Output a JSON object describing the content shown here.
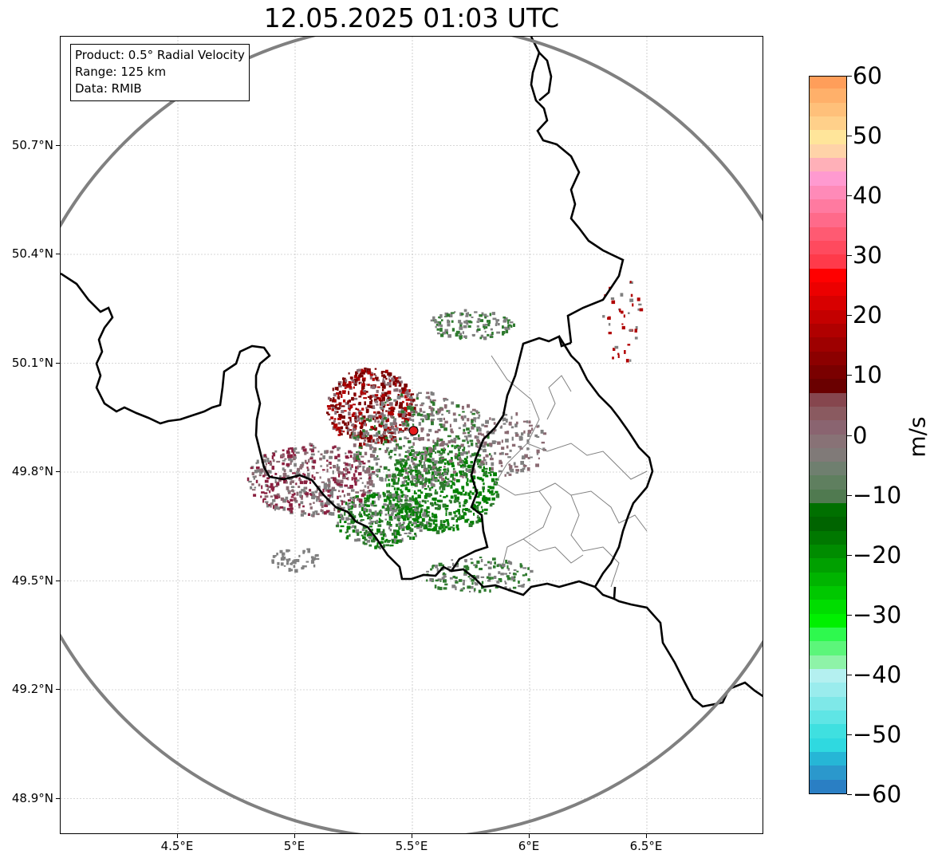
{
  "title": "12.05.2025 01:03 UTC",
  "info_box": {
    "product": "Product: 0.5° Radial Velocity",
    "range": "Range: 125 km",
    "source": "Data: RMIB"
  },
  "map": {
    "lon_range": [
      4.0,
      7.0
    ],
    "lat_range": [
      48.8,
      51.0
    ],
    "x_ticks": [
      {
        "value": 4.5,
        "label": "4.5°E"
      },
      {
        "value": 5.0,
        "label": "5°E"
      },
      {
        "value": 5.5,
        "label": "5.5°E"
      },
      {
        "value": 6.0,
        "label": "6°E"
      },
      {
        "value": 6.5,
        "label": "6.5°E"
      }
    ],
    "y_ticks": [
      {
        "value": 50.7,
        "label": "50.7°N"
      },
      {
        "value": 50.4,
        "label": "50.4°N"
      },
      {
        "value": 50.1,
        "label": "50.1°N"
      },
      {
        "value": 49.8,
        "label": "49.8°N"
      },
      {
        "value": 49.5,
        "label": "49.5°N"
      },
      {
        "value": 49.2,
        "label": "49.2°N"
      },
      {
        "value": 48.9,
        "label": "48.9°N"
      }
    ],
    "radar_site": {
      "lon": 5.505,
      "lat": 49.914
    },
    "range_ring_km": 125,
    "colors": {
      "range_ring": "#808080",
      "border": "#000000",
      "admin_border": "#808080",
      "grid": "#b0b0b0",
      "radar_marker": "#e31a1c"
    }
  },
  "colorbar": {
    "label": "m/s",
    "min": -60,
    "max": 60,
    "ticks": [
      "60",
      "50",
      "40",
      "30",
      "20",
      "10",
      "0",
      "−10",
      "−20",
      "−30",
      "−40",
      "−50",
      "−60"
    ],
    "tick_values": [
      60,
      50,
      40,
      30,
      20,
      10,
      0,
      -10,
      -20,
      -30,
      -40,
      -50,
      -60
    ],
    "colors_bottom_to_top": [
      "#2a7fc4",
      "#2b98cc",
      "#26b6d6",
      "#2fd9e0",
      "#3fe0e0",
      "#5fe5e5",
      "#7ee8e8",
      "#9aeced",
      "#b4f0f0",
      "#8ef3a8",
      "#5cf67a",
      "#2ef94e",
      "#00f000",
      "#00dd00",
      "#00c800",
      "#00b400",
      "#00a000",
      "#008c00",
      "#007800",
      "#006400",
      "#007000",
      "#507a50",
      "#5f7f5f",
      "#6f7f6f",
      "#807a78",
      "#887276",
      "#8a6470",
      "#8a5a60",
      "#86464e",
      "#6a0000",
      "#7a0000",
      "#8c0000",
      "#9e0000",
      "#b00000",
      "#c40000",
      "#d80000",
      "#ec0000",
      "#ff0000",
      "#ff3a4a",
      "#ff4a5e",
      "#ff5a72",
      "#ff6a8a",
      "#ff7aa0",
      "#ff8ab8",
      "#ff9ad0",
      "#ffb0b8",
      "#ffd3a8",
      "#ffe59a",
      "#ffd08a",
      "#ffc07a",
      "#ffb06a",
      "#ff9e5a"
    ]
  },
  "echo_colors": {
    "approaching_strong": "#008000",
    "approaching": "#2f7a2f",
    "near_zero": "#808080",
    "near_zero_warm": "#8a6a72",
    "receding": "#8a2040",
    "receding_strong": "#7a0000",
    "receding_mid": "#b00000"
  }
}
